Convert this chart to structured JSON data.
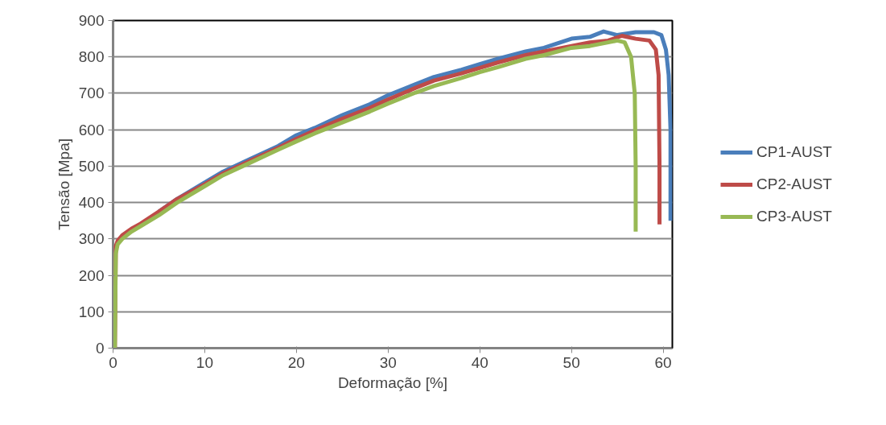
{
  "chart_data": {
    "type": "line",
    "xlabel": "Deformação [%]",
    "ylabel": "Tensão [Mpa]",
    "xlim": [
      0,
      61
    ],
    "ylim": [
      0,
      900
    ],
    "xticks": [
      0,
      10,
      20,
      30,
      40,
      50,
      60
    ],
    "yticks": [
      0,
      100,
      200,
      300,
      400,
      500,
      600,
      700,
      800,
      900
    ],
    "grid": "y",
    "legend": "right",
    "marker": "none",
    "line_style": "solid",
    "series": [
      {
        "name": "CP1-AUST",
        "color": "#4a7ebb",
        "x": [
          5,
          7,
          10,
          12,
          15,
          18,
          20,
          22,
          25,
          28,
          30,
          33,
          35,
          38,
          40,
          42,
          45,
          47,
          50,
          52,
          53.5,
          55,
          57,
          59,
          59.8,
          60.3,
          60.6,
          60.8,
          60.8
        ],
        "values": [
          375,
          410,
          455,
          485,
          520,
          555,
          585,
          605,
          640,
          670,
          695,
          725,
          745,
          765,
          780,
          795,
          815,
          825,
          850,
          855,
          870,
          860,
          868,
          868,
          860,
          820,
          750,
          600,
          350
        ]
      },
      {
        "name": "CP2-AUST",
        "color": "#be4b48",
        "x": [
          0.2,
          0.3,
          0.5,
          1,
          2,
          3,
          5,
          7,
          10,
          12,
          15,
          18,
          20,
          22,
          25,
          28,
          30,
          33,
          35,
          38,
          40,
          42,
          45,
          47,
          50,
          52,
          54,
          55.5,
          57,
          58.5,
          59.2,
          59.5,
          59.6,
          59.6
        ],
        "values": [
          0,
          280,
          295,
          310,
          328,
          342,
          375,
          410,
          450,
          480,
          515,
          550,
          575,
          598,
          630,
          660,
          683,
          715,
          735,
          755,
          770,
          785,
          805,
          815,
          830,
          840,
          845,
          858,
          850,
          845,
          820,
          750,
          500,
          340
        ]
      },
      {
        "name": "CP3-AUST",
        "color": "#98b954",
        "x": [
          0.2,
          0.3,
          0.5,
          1,
          2,
          3,
          5,
          7,
          10,
          12,
          15,
          18,
          20,
          22,
          25,
          28,
          30,
          33,
          35,
          38,
          40,
          42,
          45,
          47,
          50,
          52,
          53,
          55,
          55.8,
          56.5,
          56.9,
          57,
          57
        ],
        "values": [
          0,
          260,
          285,
          300,
          320,
          335,
          365,
          400,
          445,
          475,
          510,
          545,
          568,
          590,
          620,
          650,
          672,
          702,
          720,
          742,
          758,
          772,
          795,
          805,
          825,
          830,
          835,
          845,
          840,
          800,
          700,
          500,
          320
        ]
      }
    ]
  }
}
